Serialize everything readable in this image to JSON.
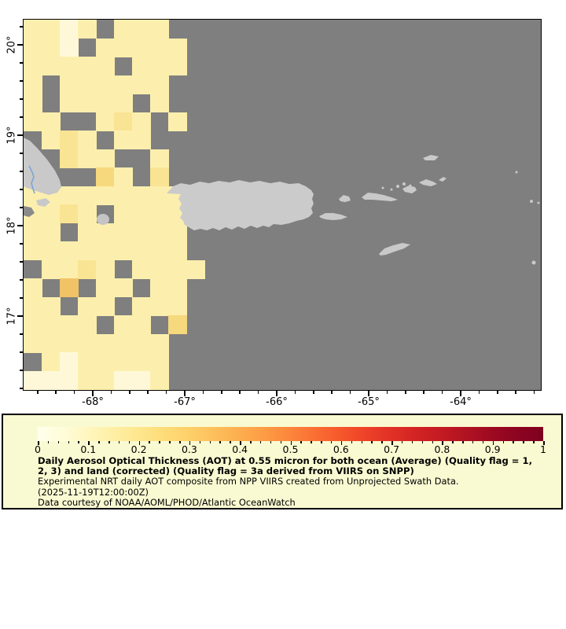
{
  "map": {
    "ocean_color": "#7F7F7F",
    "land_color": "#C9C9C9",
    "country_border_color": "#7AA5D8",
    "axis": {
      "lat_tick_labels": [
        "20°",
        "19°",
        "18°",
        "17°"
      ],
      "lon_tick_labels": [
        "-68°",
        "-67°",
        "-66°",
        "-65°",
        "-64°"
      ]
    },
    "aot_palette": {
      "a": "#FFF8D8",
      "b": "#FCEFAD",
      "c": "#F9E494",
      "d": "#F6D87D",
      "e": "#F1C366"
    },
    "aot_grid": [
      "bbab.bbb.....................",
      "bba.bbbbb....................",
      "bbbbb.bbb....................",
      "b.bbbbbb.....................",
      "b.bbbb.b.....................",
      "bb..bcb.b....................",
      ".bcb.bb......................",
      "..cbb..b.....................",
      "....db.c.....................",
      "bbbbbbbbbaa..................",
      "bbcb.bbbb....................",
      "bb.bbbbbb....................",
      "bbbbbbbbb....................",
      ".bbcb.bbbb...................",
      "b.e.bb.bb....................",
      "bb.bb.bbb....................",
      "bbbb.bb.d....................",
      "bbbbbbbb.....................",
      ".babbbbb.....................",
      "aaabbaab....................."
    ]
  },
  "legend": {
    "background": "#FAFAD2",
    "colorbar": {
      "min": 0,
      "max": 1,
      "tick_labels": [
        "0",
        "0.1",
        "0.2",
        "0.3",
        "0.4",
        "0.5",
        "0.6",
        "0.7",
        "0.8",
        "0.9",
        "1"
      ],
      "gradient_colors": [
        "#FFFFEC",
        "#FFFCD9",
        "#FFF6BE",
        "#FEEFA4",
        "#FEE68E",
        "#FEDC78",
        "#FED06A",
        "#FDBF5C",
        "#FDAD4E",
        "#FD9B44",
        "#FC853B",
        "#FA6E32",
        "#F6572B",
        "#ED4128",
        "#E03126",
        "#D22323",
        "#C31A23",
        "#B01222",
        "#9C0A21",
        "#8C0421",
        "#7E0120"
      ]
    },
    "lines": [
      {
        "text": "Daily Aerosol Optical Thickness (AOT) at 0.55 micron for both ocean (Average) (Quality flag = 1,",
        "bold": true
      },
      {
        "text": "2, 3) and land (corrected) (Quality flag = 3a derived from VIIRS on SNPP)",
        "bold": true
      },
      {
        "text": "Experimental NRT daily AOT composite from NPP VIIRS created from Unprojected Swath Data.",
        "bold": false
      },
      {
        "text": "(2025-11-19T12:00:00Z)",
        "bold": false
      },
      {
        "text": "Data courtesy of NOAA/AOML/PHOD/Atlantic OceanWatch",
        "bold": false
      }
    ]
  }
}
